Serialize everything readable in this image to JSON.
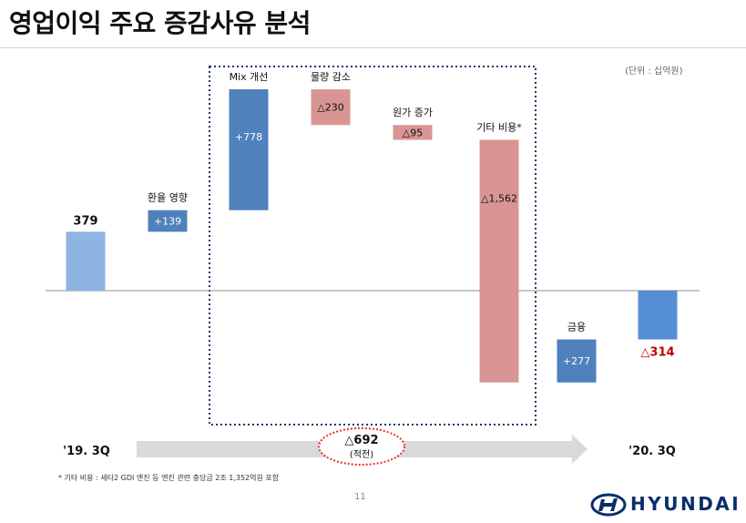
{
  "page": {
    "title": "영업이익 주요 증감사유 분석",
    "unit": "(단위 : 십억원)",
    "footnote": "* 기타 비용 : 세타2 GDI 엔진 등 엔진 관련 충당금 2조 1,352억원 포함",
    "page_number": "11",
    "brand": "HYUNDAI",
    "logo_icon": "hyundai-logo-icon"
  },
  "colors": {
    "base_bar": "#8db4e2",
    "increase_bar": "#4f81bd",
    "decrease_bar": "#d99594",
    "result_bar": "#558ed5",
    "negative_label": "#c00000",
    "dotted_box": "#1f3864",
    "ellipse": "#e8312f",
    "arrow": "#d9d9d9",
    "logo": "#0c2d6b"
  },
  "chart_data": {
    "type": "waterfall",
    "title": "영업이익 주요 증감사유 분석",
    "unit": "(단위 : 십억원)",
    "baseline": 0,
    "steps": [
      {
        "label": "",
        "value": 379,
        "kind": "total",
        "value_label": "379"
      },
      {
        "label": "환율 영향",
        "value": 139,
        "kind": "increase",
        "value_label": "+139"
      },
      {
        "label": "Mix 개선",
        "value": 778,
        "kind": "increase",
        "value_label": "+778"
      },
      {
        "label": "물량 감소",
        "value": -230,
        "kind": "decrease",
        "value_label": "△230"
      },
      {
        "label": "원가 증가",
        "value": -95,
        "kind": "decrease",
        "value_label": "△95"
      },
      {
        "label": "기타 비용*",
        "value": -1562,
        "kind": "decrease",
        "value_label": "△1,562"
      },
      {
        "label": "금융",
        "value": 277,
        "kind": "increase",
        "value_label": "+277"
      },
      {
        "label": "",
        "value": -314,
        "kind": "total",
        "value_label": "△314"
      }
    ],
    "start_label": "'19. 3Q",
    "end_label": "'20. 3Q",
    "subtotal": {
      "value": -692,
      "value_label": "△692",
      "note": "(적전)",
      "steps": [
        "Mix 개선",
        "물량 감소",
        "원가 증가",
        "기타 비용*"
      ]
    }
  }
}
